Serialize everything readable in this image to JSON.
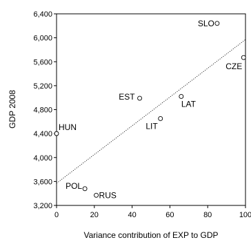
{
  "chart_data": {
    "type": "scatter",
    "title": "",
    "xlabel": "Variance contribution of EXP to GDP",
    "ylabel": "GDP 2008",
    "xlim": [
      0,
      100
    ],
    "ylim": [
      3200,
      6400
    ],
    "x_ticks": [
      0,
      20,
      40,
      60,
      80,
      100
    ],
    "y_ticks": [
      3200,
      3600,
      4000,
      4400,
      4800,
      5200,
      5600,
      6000,
      6400
    ],
    "x_tick_labels": [
      "0",
      "20",
      "40",
      "60",
      "80",
      "100"
    ],
    "y_tick_labels": [
      "3,200",
      "3,600",
      "4,000",
      "4,400",
      "4,800",
      "5,200",
      "5,600",
      "6,000",
      "6,400"
    ],
    "grid": false,
    "points": [
      {
        "label": "SLO",
        "x": 85,
        "y": 6240
      },
      {
        "label": "CZE",
        "x": 99,
        "y": 5670
      },
      {
        "label": "EST",
        "x": 44,
        "y": 4990
      },
      {
        "label": "LAT",
        "x": 66,
        "y": 5020
      },
      {
        "label": "LIT",
        "x": 55,
        "y": 4650
      },
      {
        "label": "HUN",
        "x": 0,
        "y": 4400
      },
      {
        "label": "POL",
        "x": 15,
        "y": 3480
      },
      {
        "label": "RUS",
        "x": 21,
        "y": 3370
      }
    ],
    "trendline": {
      "x": [
        0,
        100
      ],
      "y": [
        3570,
        5970
      ],
      "style": "dotted"
    }
  }
}
